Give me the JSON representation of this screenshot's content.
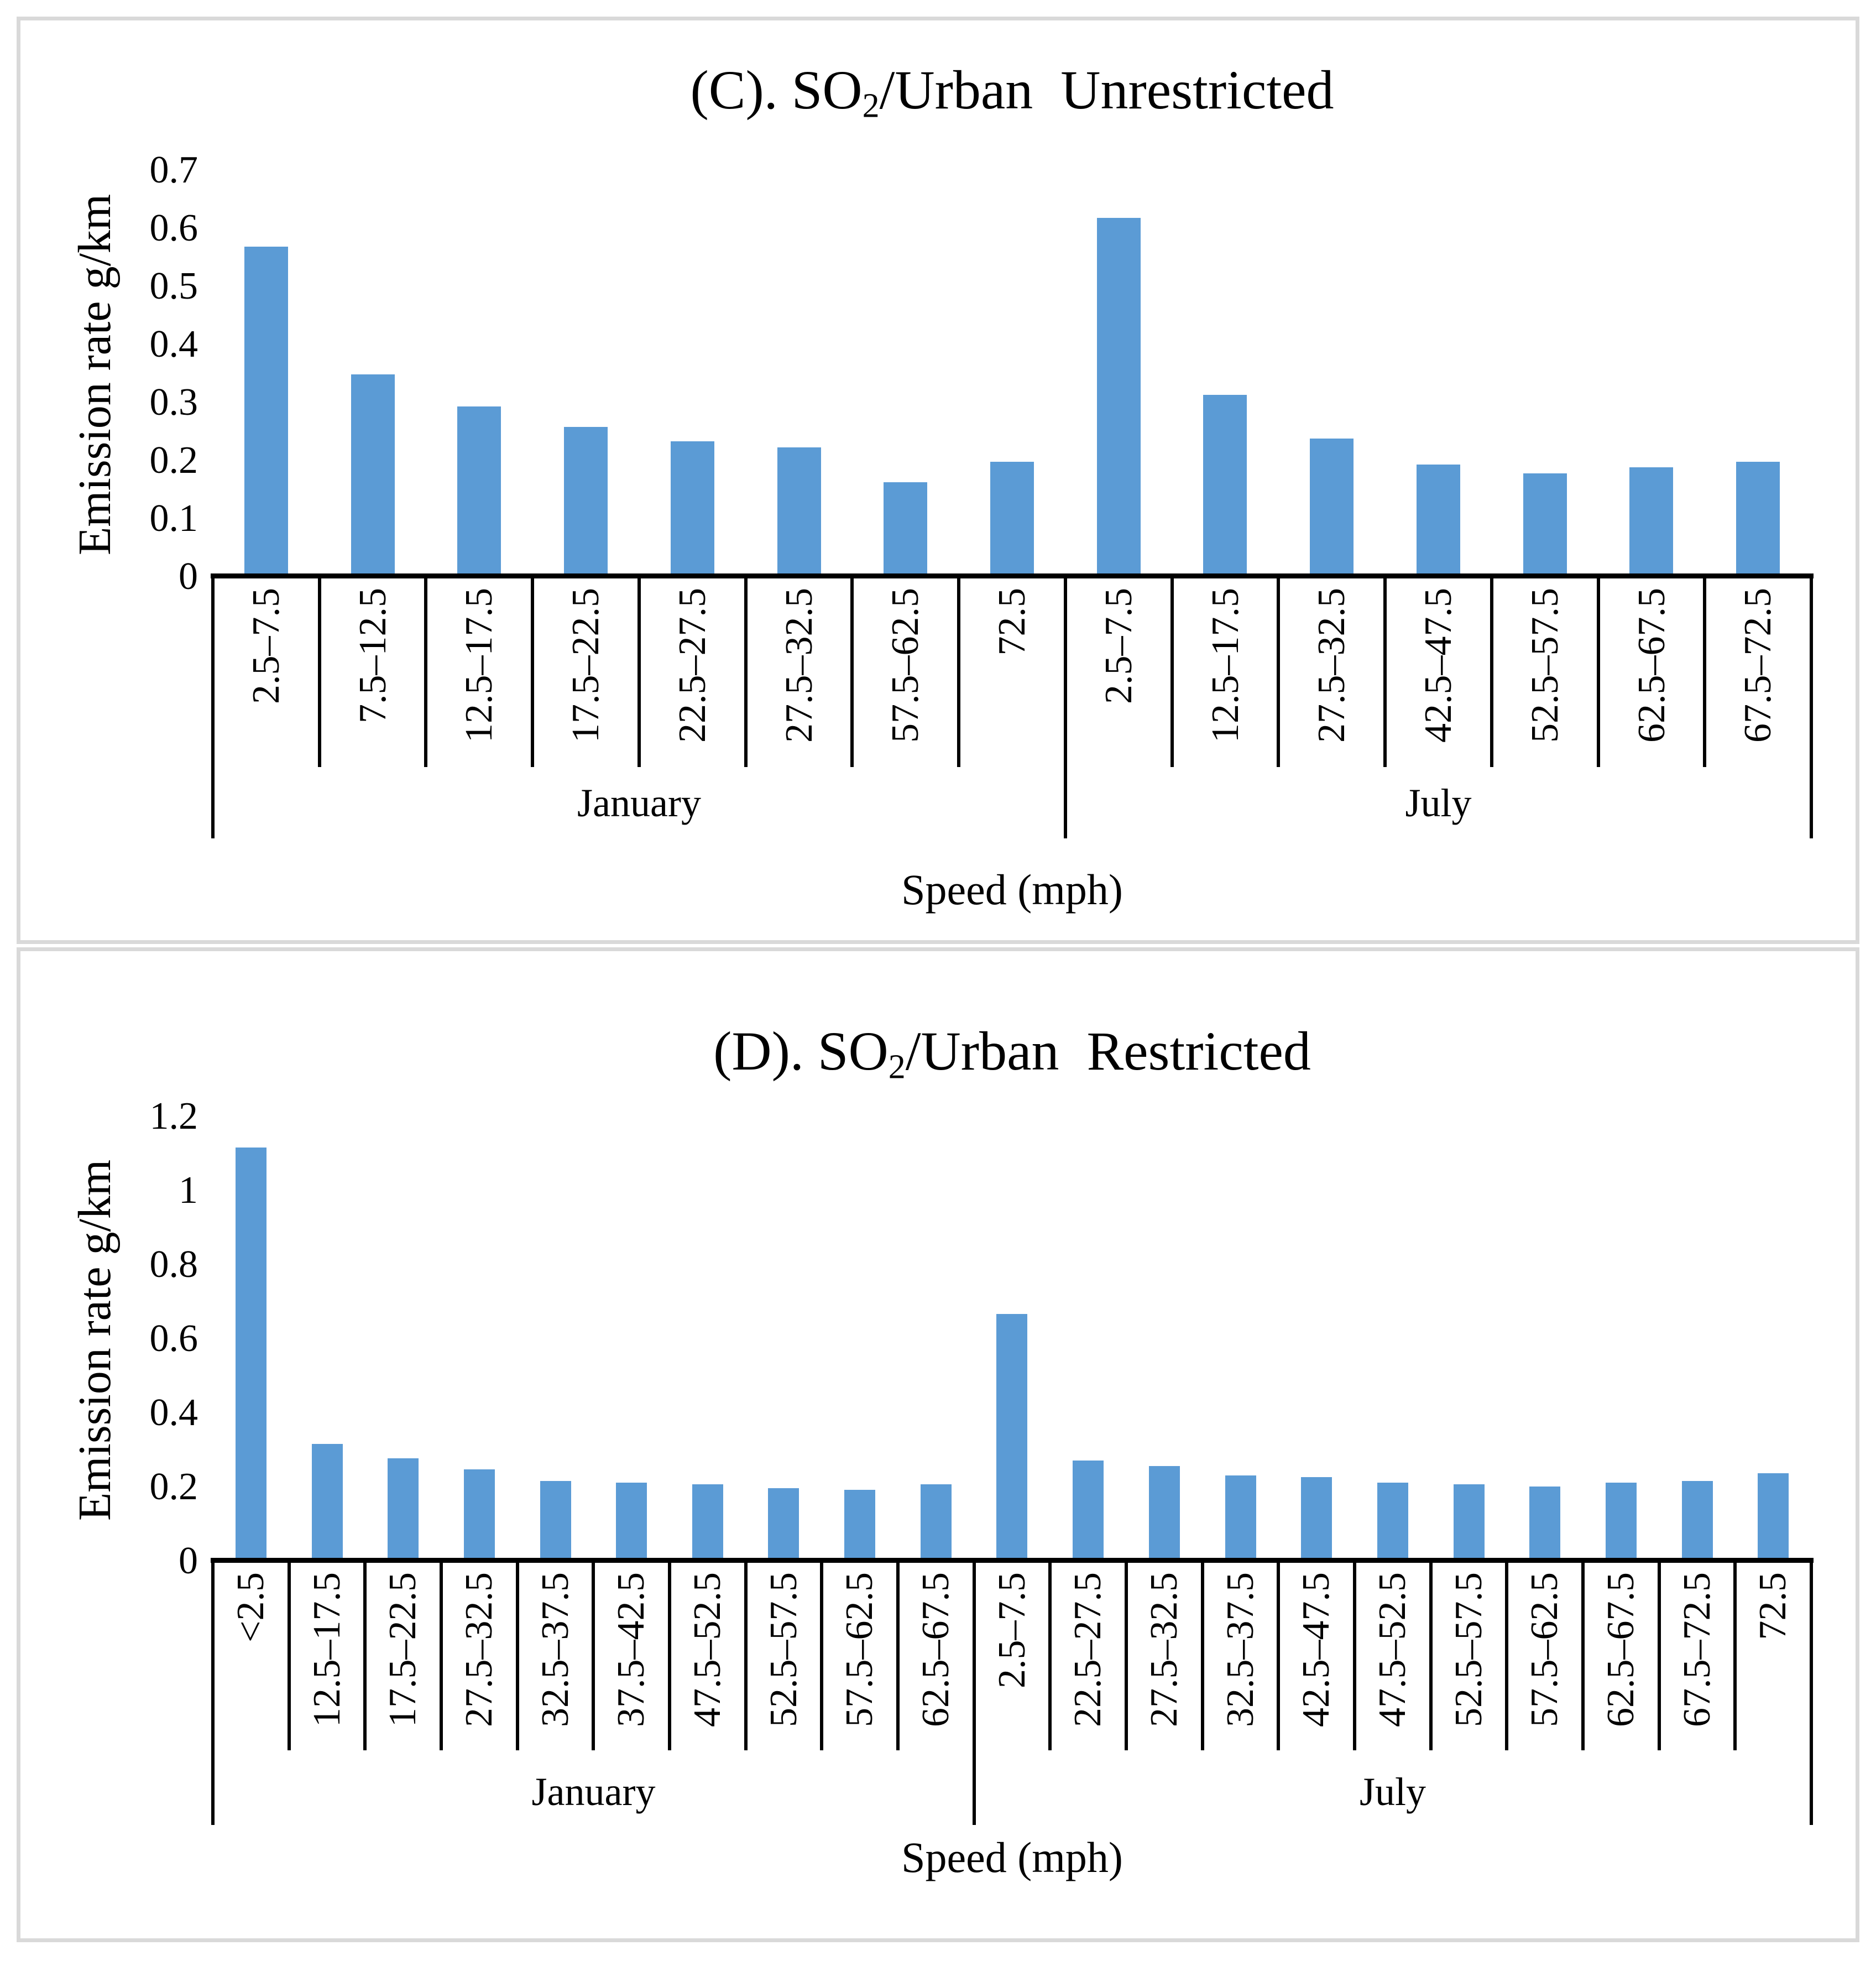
{
  "page": {
    "background_color": "#ffffff",
    "panel_border_color": "#d9d9d9",
    "bar_color": "#5b9bd5",
    "axis_line_color": "#000000"
  },
  "chart_data": [
    {
      "type": "bar",
      "panel": "C",
      "title_text": "(C). SO2/Urban  Unrestricted",
      "title_parts": {
        "pre": "(C). SO",
        "sub": "2",
        "post": "/Urban  Unrestricted"
      },
      "ylabel": "Emission rate g/km",
      "xlabel": "Speed (mph)",
      "ylim": [
        0,
        0.7
      ],
      "ytick_values": [
        0.7,
        0.6,
        0.5,
        0.4,
        0.3,
        0.2,
        0.1,
        0
      ],
      "ytick_labels": [
        "0.7",
        "0.6",
        "0.5",
        "0.4",
        "0.3",
        "0.2",
        "0.1",
        "0"
      ],
      "gridlines": false,
      "legend_position": "none",
      "bar_color": "#5b9bd5",
      "groups": [
        {
          "label": "January",
          "categories": [
            "2.5–7.5",
            "7.5–12.5",
            "12.5–17.5",
            "17.5–22.5",
            "22.5–27.5",
            "27.5–32.5",
            "57.5–62.5",
            "72.5"
          ],
          "values": [
            0.57,
            0.35,
            0.295,
            0.26,
            0.235,
            0.225,
            0.165,
            0.2
          ]
        },
        {
          "label": "July",
          "categories": [
            "2.5–7.5",
            "12.5–17.5",
            "27.5–32.5",
            "42.5–47.5",
            "52.5–57.5",
            "62.5–67.5",
            "67.5–72.5"
          ],
          "values": [
            0.62,
            0.315,
            0.24,
            0.195,
            0.18,
            0.19,
            0.2
          ]
        }
      ]
    },
    {
      "type": "bar",
      "panel": "D",
      "title_text": "(D). SO2/Urban  Restricted",
      "title_parts": {
        "pre": "(D). SO",
        "sub": "2",
        "post": "/Urban  Restricted"
      },
      "ylabel": "Emission rate g/km",
      "xlabel": "Speed (mph)",
      "ylim": [
        0,
        1.2
      ],
      "ytick_values": [
        1.2,
        1,
        0.8,
        0.6,
        0.4,
        0.2,
        0
      ],
      "ytick_labels": [
        "1.2",
        "1",
        "0.8",
        "0.6",
        "0.4",
        "0.2",
        "0"
      ],
      "gridlines": false,
      "legend_position": "none",
      "bar_color": "#5b9bd5",
      "groups": [
        {
          "label": "January",
          "categories": [
            "<2.5",
            "12.5–17.5",
            "17.5–22.5",
            "27.5–32.5",
            "32.5–37.5",
            "37.5–42.5",
            "47.5–52.5",
            "52.5–57.5",
            "57.5–62.5",
            "62.5–67.5"
          ],
          "values": [
            1.12,
            0.32,
            0.28,
            0.25,
            0.22,
            0.215,
            0.21,
            0.2,
            0.195,
            0.21
          ]
        },
        {
          "label": "July",
          "categories": [
            "2.5–7.5",
            "22.5–27.5",
            "27.5–32.5",
            "32.5–37.5",
            "42.5–47.5",
            "47.5–52.5",
            "52.5–57.5",
            "57.5–62.5",
            "62.5–67.5",
            "67.5–72.5",
            "72.5"
          ],
          "values": [
            0.67,
            0.275,
            0.26,
            0.235,
            0.23,
            0.215,
            0.21,
            0.205,
            0.215,
            0.22,
            0.24
          ]
        }
      ]
    }
  ]
}
